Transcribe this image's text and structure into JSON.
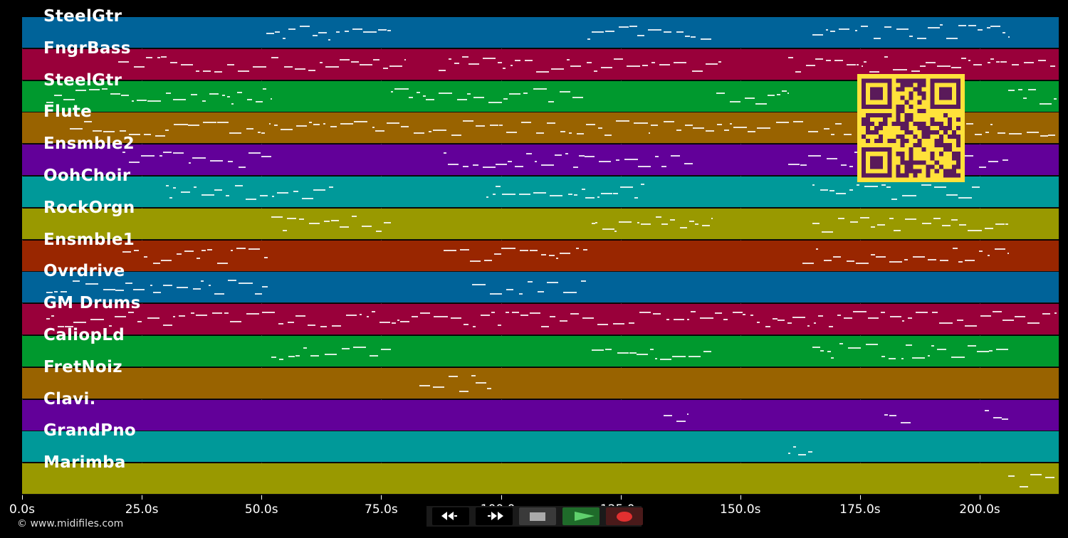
{
  "tracks": [
    {
      "name": "SteelGtr",
      "color": "#006399"
    },
    {
      "name": "FngrBass",
      "color": "#99003a"
    },
    {
      "name": "SteelGtr",
      "color": "#00992e"
    },
    {
      "name": "Flute",
      "color": "#996300"
    },
    {
      "name": "Ensmble2",
      "color": "#620099"
    },
    {
      "name": "OohChoir",
      "color": "#009999"
    },
    {
      "name": "RockOrgn",
      "color": "#999900"
    },
    {
      "name": "Ensmble1",
      "color": "#992600"
    },
    {
      "name": "Ovrdrive",
      "color": "#006399"
    },
    {
      "name": "GM Drums",
      "color": "#99003a"
    },
    {
      "name": "CaliopLd",
      "color": "#00992e"
    },
    {
      "name": "FretNoiz",
      "color": "#996300"
    },
    {
      "name": "Clavi.",
      "color": "#620099"
    },
    {
      "name": "GrandPno",
      "color": "#009999"
    },
    {
      "name": "Marimba",
      "color": "#999900"
    }
  ],
  "timeline": {
    "ticks": [
      "0.0s",
      "25.0s",
      "50.0s",
      "75.0s",
      "100.0s",
      "125.0s",
      "150.0s",
      "175.0s",
      "200.0s"
    ],
    "tick_values": [
      0,
      25,
      50,
      75,
      100,
      125,
      150,
      175,
      200
    ],
    "max_seconds": 216.5
  },
  "transport": {
    "rewind_icon": "rewind-icon",
    "forward_icon": "fast-forward-icon",
    "stop_icon": "stop-icon",
    "play_icon": "play-icon",
    "record_icon": "record-icon"
  },
  "footer": {
    "copyright": "© www.midifiles.com"
  },
  "colors": {
    "background": "#000000",
    "qr": "#ffe23a",
    "qr_dark": "#5a1a5a"
  }
}
